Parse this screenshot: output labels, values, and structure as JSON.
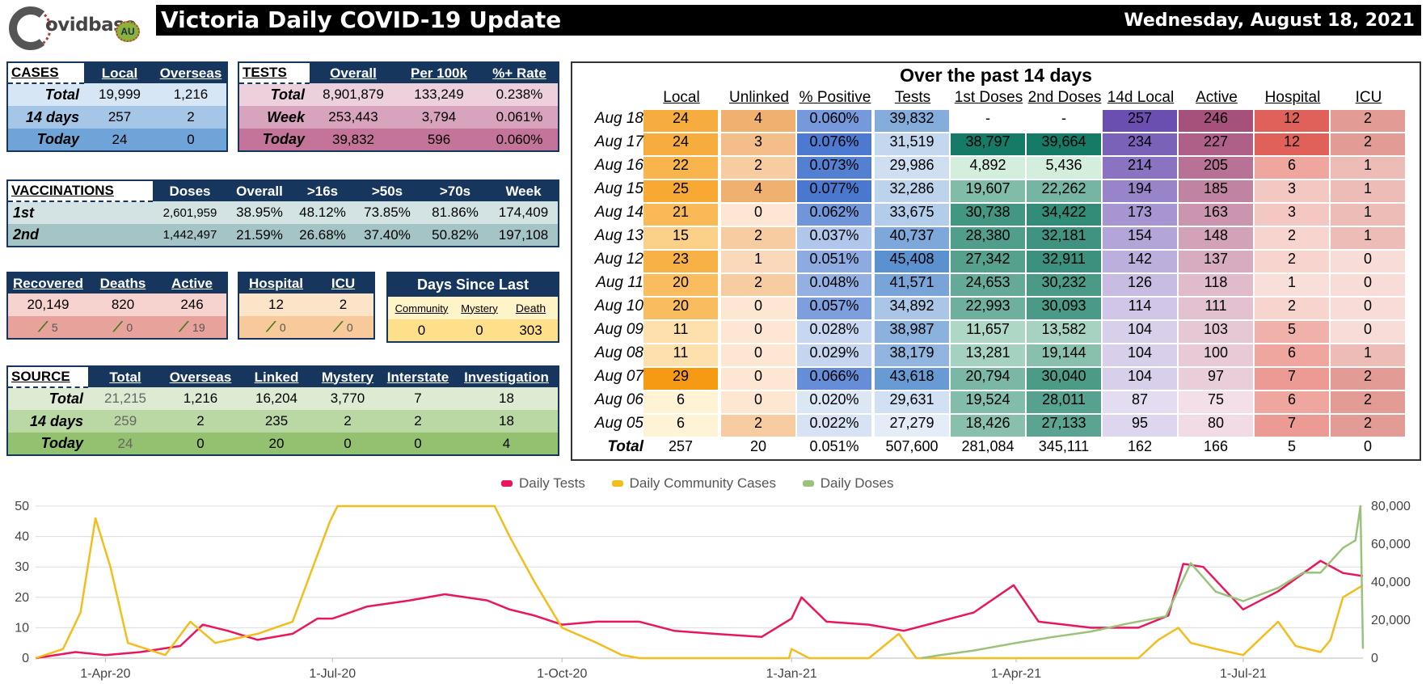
{
  "logo": {
    "text": "ovidbase",
    "badge": "AU"
  },
  "header": {
    "title": "Victoria Daily COVID-19 Update",
    "date": "Wednesday, August 18, 2021"
  },
  "cases": {
    "label": "CASES",
    "cols": [
      "Local",
      "Overseas"
    ],
    "rows": [
      {
        "label": "Total",
        "values": [
          "19,999",
          "1,216"
        ]
      },
      {
        "label": "14 days",
        "values": [
          "257",
          "2"
        ]
      },
      {
        "label": "Today",
        "values": [
          "24",
          "0"
        ]
      }
    ]
  },
  "tests": {
    "label": "TESTS",
    "cols": [
      "Overall",
      "Per 100k",
      "%+ Rate"
    ],
    "rows": [
      {
        "label": "Total",
        "values": [
          "8,901,879",
          "133,249",
          "0.238%"
        ]
      },
      {
        "label": "Week",
        "values": [
          "253,443",
          "3,794",
          "0.061%"
        ]
      },
      {
        "label": "Today",
        "values": [
          "39,832",
          "596",
          "0.060%"
        ]
      }
    ]
  },
  "vaccinations": {
    "label": "VACCINATIONS",
    "cols": [
      "Doses",
      "Overall",
      ">16s",
      ">50s",
      ">70s",
      "Week"
    ],
    "rows": [
      {
        "label": "1st",
        "values": [
          "2,601,959",
          "38.95%",
          "48.12%",
          "73.85%",
          "81.86%",
          "174,409"
        ]
      },
      {
        "label": "2nd",
        "values": [
          "1,442,497",
          "21.59%",
          "26.68%",
          "37.40%",
          "50.82%",
          "197,108"
        ]
      }
    ]
  },
  "outcomes": {
    "cols": [
      "Recovered",
      "Deaths",
      "Active"
    ],
    "values": [
      "20,149",
      "820",
      "246"
    ],
    "changes": [
      "5",
      "0",
      "19"
    ]
  },
  "hospital": {
    "cols": [
      "Hospital",
      "ICU"
    ],
    "values": [
      "12",
      "2"
    ],
    "changes": [
      "0",
      "0"
    ]
  },
  "days_since": {
    "title": "Days Since Last",
    "cols": [
      "Community",
      "Mystery",
      "Death"
    ],
    "values": [
      "0",
      "0",
      "303"
    ]
  },
  "source": {
    "label": "SOURCE",
    "cols": [
      "Total",
      "Overseas",
      "Linked",
      "Mystery",
      "Interstate",
      "Investigation"
    ],
    "rows": [
      {
        "label": "Total",
        "values": [
          "21,215",
          "1,216",
          "16,204",
          "3,770",
          "7",
          "18"
        ]
      },
      {
        "label": "14 days",
        "values": [
          "259",
          "2",
          "235",
          "2",
          "2",
          "18"
        ]
      },
      {
        "label": "Today",
        "values": [
          "24",
          "0",
          "20",
          "0",
          "0",
          "4"
        ]
      }
    ]
  },
  "past14": {
    "title": "Over the past 14 days",
    "cols": [
      "Local",
      "Unlinked",
      "% Positive",
      "Tests",
      "1st Doses",
      "2nd Doses",
      "14d Local",
      "Active",
      "Hospital",
      "ICU"
    ],
    "rows": [
      {
        "date": "Aug 18",
        "values": [
          "24",
          "4",
          "0.060%",
          "39,832",
          "-",
          "-",
          "257",
          "246",
          "12",
          "2"
        ]
      },
      {
        "date": "Aug 17",
        "values": [
          "24",
          "3",
          "0.076%",
          "31,519",
          "38,797",
          "39,664",
          "234",
          "227",
          "12",
          "2"
        ]
      },
      {
        "date": "Aug 16",
        "values": [
          "22",
          "2",
          "0.073%",
          "29,986",
          "4,892",
          "5,436",
          "214",
          "205",
          "6",
          "1"
        ]
      },
      {
        "date": "Aug 15",
        "values": [
          "25",
          "4",
          "0.077%",
          "32,286",
          "19,607",
          "22,262",
          "194",
          "185",
          "3",
          "1"
        ]
      },
      {
        "date": "Aug 14",
        "values": [
          "21",
          "0",
          "0.062%",
          "33,675",
          "30,738",
          "34,422",
          "173",
          "163",
          "3",
          "1"
        ]
      },
      {
        "date": "Aug 13",
        "values": [
          "15",
          "2",
          "0.037%",
          "40,737",
          "28,380",
          "32,181",
          "154",
          "148",
          "2",
          "1"
        ]
      },
      {
        "date": "Aug 12",
        "values": [
          "23",
          "1",
          "0.051%",
          "45,408",
          "27,342",
          "32,911",
          "142",
          "137",
          "2",
          "0"
        ]
      },
      {
        "date": "Aug 11",
        "values": [
          "20",
          "2",
          "0.048%",
          "41,571",
          "24,653",
          "30,232",
          "126",
          "118",
          "1",
          "0"
        ]
      },
      {
        "date": "Aug 10",
        "values": [
          "20",
          "0",
          "0.057%",
          "34,892",
          "22,993",
          "30,093",
          "114",
          "111",
          "2",
          "0"
        ]
      },
      {
        "date": "Aug 09",
        "values": [
          "11",
          "0",
          "0.028%",
          "38,987",
          "11,657",
          "13,582",
          "104",
          "103",
          "5",
          "0"
        ]
      },
      {
        "date": "Aug 08",
        "values": [
          "11",
          "0",
          "0.029%",
          "38,179",
          "13,281",
          "19,144",
          "104",
          "100",
          "6",
          "1"
        ]
      },
      {
        "date": "Aug 07",
        "values": [
          "29",
          "0",
          "0.066%",
          "43,618",
          "20,794",
          "30,040",
          "104",
          "97",
          "7",
          "2"
        ]
      },
      {
        "date": "Aug 06",
        "values": [
          "6",
          "0",
          "0.020%",
          "29,631",
          "19,524",
          "28,011",
          "87",
          "75",
          "6",
          "2"
        ]
      },
      {
        "date": "Aug 05",
        "values": [
          "6",
          "2",
          "0.022%",
          "27,279",
          "18,426",
          "27,133",
          "95",
          "80",
          "7",
          "2"
        ]
      }
    ],
    "total": {
      "label": "Total",
      "values": [
        "257",
        "20",
        "0.051%",
        "507,600",
        "281,084",
        "345,111",
        "162",
        "166",
        "5",
        "0"
      ]
    }
  },
  "colors": {
    "navy": "#16365e",
    "tests_line": "#e8175d",
    "cases_line": "#f2bd1d",
    "doses_line": "#9bc27b"
  },
  "chart_data": {
    "type": "line",
    "legend_position": "top",
    "grid": true,
    "x_tick_labels": [
      "1-Apr-20",
      "1-Jul-20",
      "1-Oct-20",
      "1-Jan-21",
      "1-Apr-21",
      "1-Jul-21"
    ],
    "x_tick_dates": [
      "2020-04-01",
      "2020-07-01",
      "2020-10-01",
      "2021-01-01",
      "2021-04-01",
      "2021-07-01"
    ],
    "x_range": [
      "2020-03-04",
      "2021-08-18"
    ],
    "y_left": {
      "ticks": [
        0,
        10,
        20,
        30,
        40,
        50
      ],
      "range": [
        0,
        50
      ]
    },
    "y_right": {
      "ticks_labels": [
        "0",
        "20,000",
        "40,000",
        "60,000",
        "80,000"
      ],
      "range": [
        0,
        80000
      ]
    },
    "series": [
      {
        "name": "Daily Tests",
        "axis": "left",
        "color": "#e8175d",
        "points": [
          [
            "2020-03-04",
            0
          ],
          [
            "2020-03-20",
            2
          ],
          [
            "2020-04-01",
            1
          ],
          [
            "2020-04-15",
            2
          ],
          [
            "2020-05-01",
            4
          ],
          [
            "2020-05-10",
            11
          ],
          [
            "2020-05-20",
            9
          ],
          [
            "2020-06-01",
            6
          ],
          [
            "2020-06-15",
            8
          ],
          [
            "2020-06-25",
            13
          ],
          [
            "2020-07-01",
            13
          ],
          [
            "2020-07-15",
            17
          ],
          [
            "2020-08-01",
            19
          ],
          [
            "2020-08-15",
            21
          ],
          [
            "2020-09-01",
            19
          ],
          [
            "2020-09-10",
            16
          ],
          [
            "2020-09-20",
            14
          ],
          [
            "2020-10-01",
            11
          ],
          [
            "2020-10-15",
            12
          ],
          [
            "2020-11-01",
            12
          ],
          [
            "2020-11-15",
            9
          ],
          [
            "2020-12-01",
            8
          ],
          [
            "2020-12-20",
            7
          ],
          [
            "2021-01-01",
            13
          ],
          [
            "2021-01-05",
            20
          ],
          [
            "2021-01-15",
            12
          ],
          [
            "2021-02-01",
            11
          ],
          [
            "2021-02-15",
            9
          ],
          [
            "2021-03-01",
            12
          ],
          [
            "2021-03-15",
            15
          ],
          [
            "2021-03-31",
            24
          ],
          [
            "2021-04-10",
            12
          ],
          [
            "2021-05-01",
            10
          ],
          [
            "2021-05-20",
            10
          ],
          [
            "2021-06-01",
            14
          ],
          [
            "2021-06-07",
            31
          ],
          [
            "2021-06-15",
            30
          ],
          [
            "2021-07-01",
            16
          ],
          [
            "2021-07-15",
            22
          ],
          [
            "2021-08-01",
            32
          ],
          [
            "2021-08-10",
            28
          ],
          [
            "2021-08-18",
            27
          ]
        ]
      },
      {
        "name": "Daily Community Cases",
        "axis": "left",
        "color": "#f2bd1d",
        "points": [
          [
            "2020-03-04",
            0
          ],
          [
            "2020-03-15",
            3
          ],
          [
            "2020-03-22",
            15
          ],
          [
            "2020-03-28",
            46
          ],
          [
            "2020-04-03",
            30
          ],
          [
            "2020-04-10",
            5
          ],
          [
            "2020-04-25",
            1
          ],
          [
            "2020-05-05",
            12
          ],
          [
            "2020-05-15",
            5
          ],
          [
            "2020-06-01",
            8
          ],
          [
            "2020-06-15",
            12
          ],
          [
            "2020-06-30",
            45
          ],
          [
            "2020-07-03",
            50
          ],
          [
            "2020-09-04",
            50
          ],
          [
            "2020-09-10",
            40
          ],
          [
            "2020-09-20",
            25
          ],
          [
            "2020-10-01",
            10
          ],
          [
            "2020-10-15",
            5
          ],
          [
            "2020-10-25",
            1
          ],
          [
            "2020-11-01",
            0
          ],
          [
            "2020-12-31",
            0
          ],
          [
            "2021-01-01",
            3
          ],
          [
            "2021-01-08",
            0
          ],
          [
            "2021-02-01",
            0
          ],
          [
            "2021-02-13",
            8
          ],
          [
            "2021-02-20",
            0
          ],
          [
            "2021-05-20",
            0
          ],
          [
            "2021-05-28",
            6
          ],
          [
            "2021-06-05",
            10
          ],
          [
            "2021-06-10",
            5
          ],
          [
            "2021-06-20",
            3
          ],
          [
            "2021-07-01",
            1
          ],
          [
            "2021-07-15",
            12
          ],
          [
            "2021-07-22",
            4
          ],
          [
            "2021-08-01",
            2
          ],
          [
            "2021-08-05",
            6
          ],
          [
            "2021-08-10",
            20
          ],
          [
            "2021-08-18",
            24
          ]
        ]
      },
      {
        "name": "Daily Doses",
        "axis": "right",
        "color": "#9bc27b",
        "points": [
          [
            "2021-02-22",
            0
          ],
          [
            "2021-03-01",
            1500
          ],
          [
            "2021-03-15",
            4000
          ],
          [
            "2021-04-01",
            8000
          ],
          [
            "2021-04-15",
            11000
          ],
          [
            "2021-05-01",
            14000
          ],
          [
            "2021-05-15",
            18000
          ],
          [
            "2021-05-31",
            22000
          ],
          [
            "2021-06-10",
            50000
          ],
          [
            "2021-06-20",
            35000
          ],
          [
            "2021-07-01",
            30000
          ],
          [
            "2021-07-15",
            37000
          ],
          [
            "2021-07-25",
            45000
          ],
          [
            "2021-08-01",
            45000
          ],
          [
            "2021-08-10",
            58000
          ],
          [
            "2021-08-15",
            62000
          ],
          [
            "2021-08-17",
            80000
          ],
          [
            "2021-08-18",
            5000
          ]
        ]
      }
    ]
  }
}
